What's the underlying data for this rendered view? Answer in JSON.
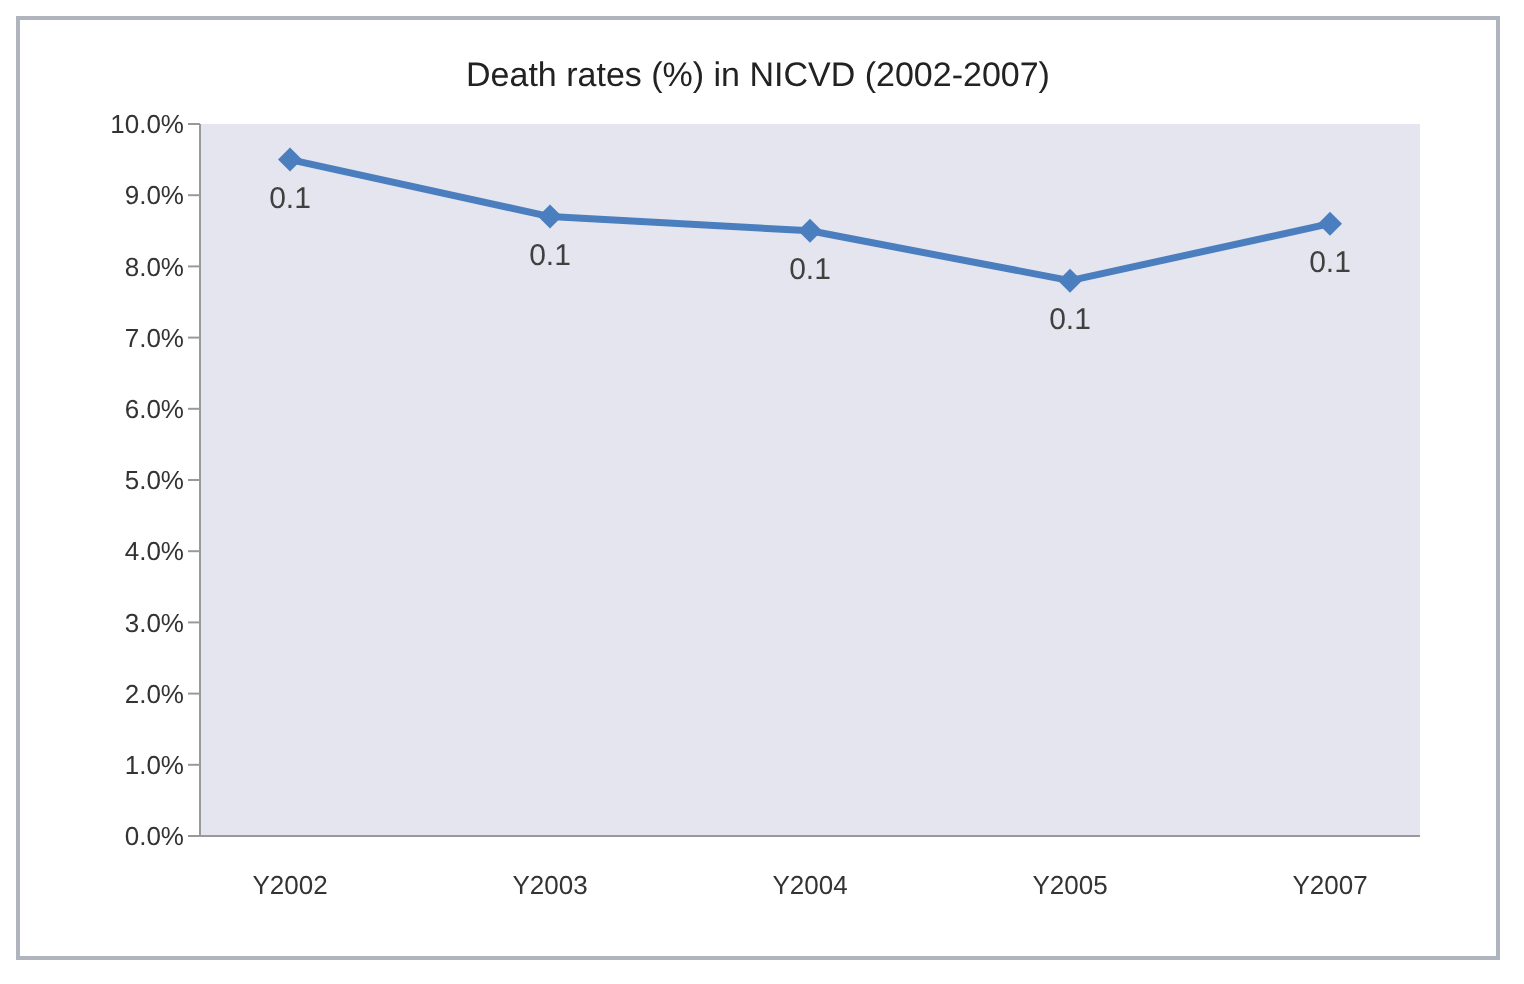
{
  "chart_data": {
    "type": "line",
    "title": "Death rates (%) in NICVD (2002-2007)",
    "categories": [
      "Y2002",
      "Y2003",
      "Y2004",
      "Y2005",
      "Y2007"
    ],
    "series": [
      {
        "color": "#4a7ebf",
        "values": [
          0.095,
          0.087,
          0.085,
          0.078,
          0.086
        ],
        "value_labels": [
          "0.1",
          "0.1",
          "0.1",
          "0.1",
          "0.1"
        ]
      }
    ],
    "ylim": [
      0,
      0.1
    ],
    "yticks": [
      {
        "value": 0,
        "label": "0.0%"
      },
      {
        "value": 0.01,
        "label": "1.0%"
      },
      {
        "value": 0.02,
        "label": "2.0%"
      },
      {
        "value": 0.03,
        "label": "3.0%"
      },
      {
        "value": 0.04,
        "label": "4.0%"
      },
      {
        "value": 0.05,
        "label": "5.0%"
      },
      {
        "value": 0.06,
        "label": "6.0%"
      },
      {
        "value": 0.07,
        "label": "7.0%"
      },
      {
        "value": 0.08,
        "label": "8.0%"
      },
      {
        "value": 0.09,
        "label": "9.0%"
      },
      {
        "value": 0.1,
        "label": "10.0%"
      }
    ],
    "grid": false,
    "legend": false,
    "marker": "diamond",
    "line_style": "solid"
  }
}
